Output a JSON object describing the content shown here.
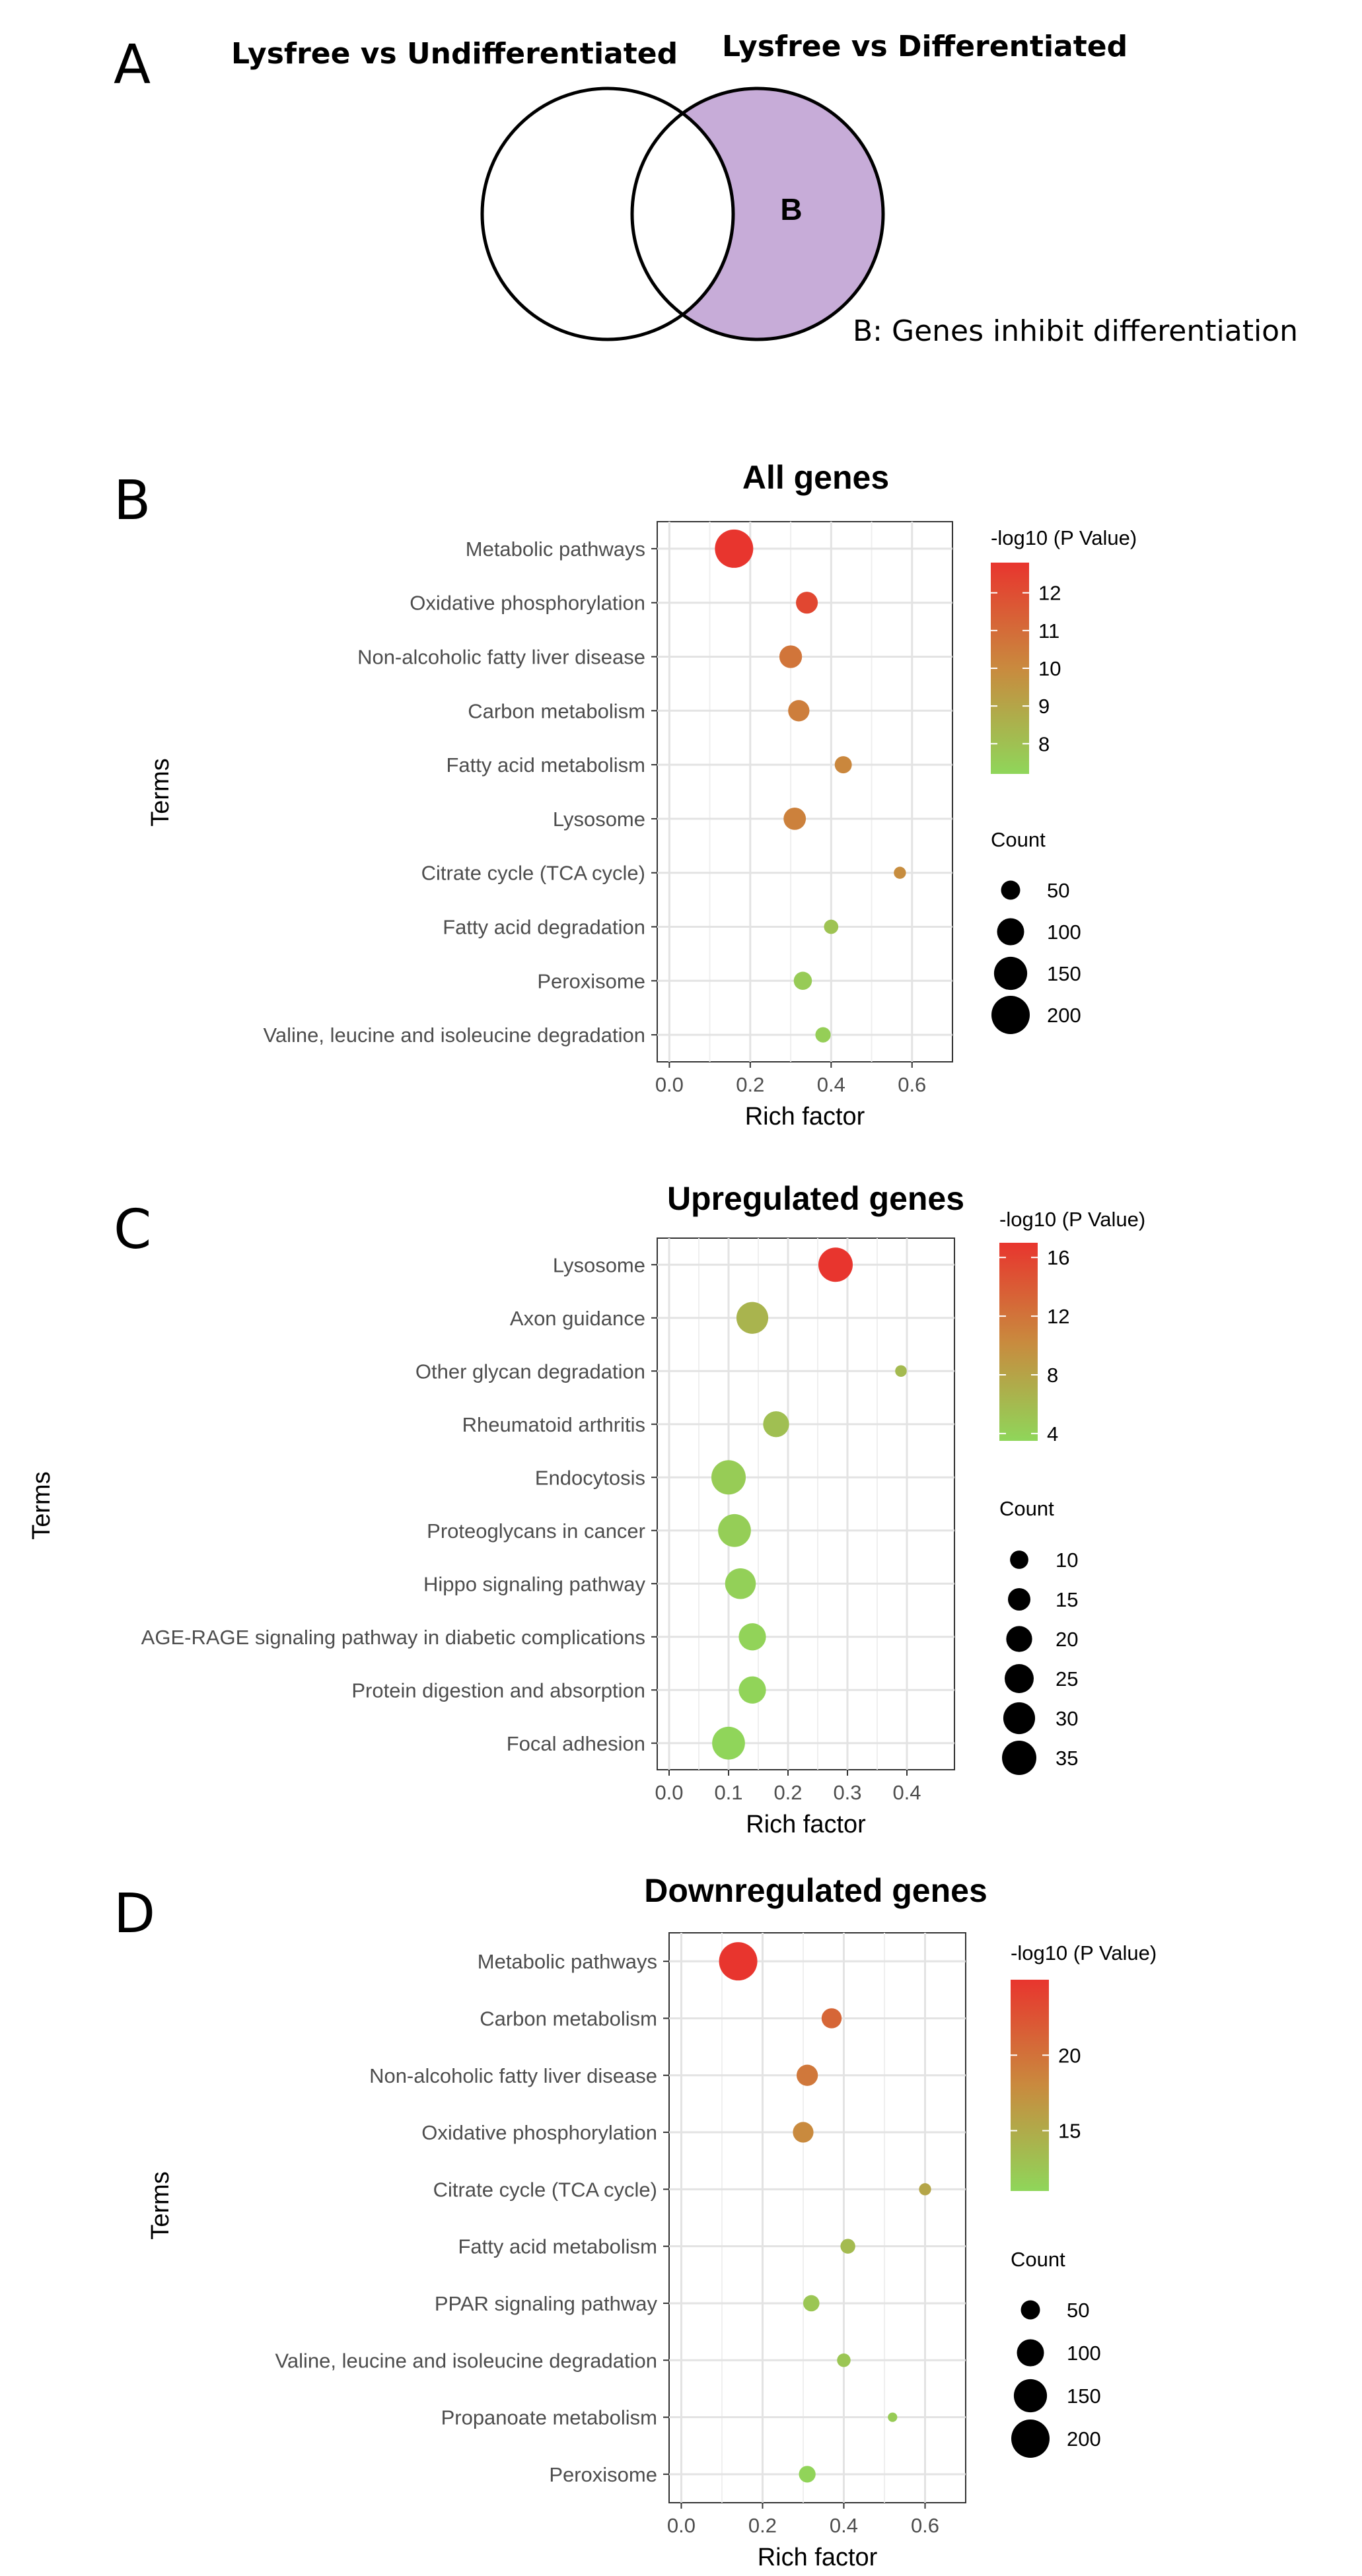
{
  "panel_labels": {
    "a": "A",
    "b": "B",
    "c": "C",
    "d": "D"
  },
  "venn": {
    "left_title": "Lysfree vs Undifferentiated",
    "right_title": "Lysfree vs Differentiated",
    "region_label": "B",
    "note": "B: Genes inhibit differentiation",
    "fill_color": "#c7acd8"
  },
  "colors": {
    "high": "#e8352e",
    "mid": "#c98a3e",
    "low": "#8fd65a"
  },
  "chart_data": [
    {
      "type": "scatter",
      "subtype": "bubble",
      "title": "All genes",
      "xlabel": "Rich factor",
      "ylabel": "Terms",
      "xlim": [
        -0.03,
        0.7
      ],
      "xticks": [
        0.0,
        0.2,
        0.4,
        0.6
      ],
      "xtick_labels": [
        "0.0",
        "0.2",
        "0.4",
        "0.6"
      ],
      "color_legend_title": "-log10 (P Value)",
      "color_range": [
        7.2,
        12.8
      ],
      "color_ticks": [
        12,
        11,
        10,
        9,
        8
      ],
      "color_tick_labels": [
        "12",
        "11",
        "10",
        "9",
        "8"
      ],
      "size_legend_title": "Count",
      "size_legend": [
        50,
        100,
        150,
        200
      ],
      "size_legend_labels": [
        "50",
        "100",
        "150",
        "200"
      ],
      "count_max": 200,
      "points": [
        {
          "term": "Metabolic pathways",
          "rich": 0.16,
          "p": 12.8,
          "count": 200
        },
        {
          "term": "Oxidative phosphorylation",
          "rich": 0.34,
          "p": 12.2,
          "count": 65
        },
        {
          "term": "Non-alcoholic fatty liver disease",
          "rich": 0.3,
          "p": 10.7,
          "count": 70
        },
        {
          "term": "Carbon metabolism",
          "rich": 0.32,
          "p": 10.4,
          "count": 62
        },
        {
          "term": "Fatty acid metabolism",
          "rich": 0.43,
          "p": 10.1,
          "count": 40
        },
        {
          "term": "Lysosome",
          "rich": 0.31,
          "p": 10.3,
          "count": 68
        },
        {
          "term": "Citrate cycle (TCA cycle)",
          "rich": 0.57,
          "p": 9.9,
          "count": 20
        },
        {
          "term": "Fatty acid degradation",
          "rich": 0.4,
          "p": 7.9,
          "count": 28
        },
        {
          "term": "Peroxisome",
          "rich": 0.33,
          "p": 7.6,
          "count": 45
        },
        {
          "term": "Valine, leucine and isoleucine degradation",
          "rich": 0.38,
          "p": 7.5,
          "count": 32
        }
      ]
    },
    {
      "type": "scatter",
      "subtype": "bubble",
      "title": "Upregulated genes",
      "xlabel": "Rich factor",
      "ylabel": "Terms",
      "xlim": [
        -0.02,
        0.48
      ],
      "xticks": [
        0.0,
        0.1,
        0.2,
        0.3,
        0.4
      ],
      "xtick_labels": [
        "0.0",
        "0.1",
        "0.2",
        "0.3",
        "0.4"
      ],
      "color_legend_title": "-log10 (P Value)",
      "color_range": [
        3.5,
        17
      ],
      "color_ticks": [
        16,
        12,
        8,
        4
      ],
      "color_tick_labels": [
        "16",
        "12",
        "8",
        "4"
      ],
      "size_legend_title": "Count",
      "size_legend": [
        10,
        15,
        20,
        25,
        30,
        35
      ],
      "size_legend_labels": [
        "10",
        "15",
        "20",
        "25",
        "30",
        "35"
      ],
      "count_max": 35,
      "points": [
        {
          "term": "Lysosome",
          "rich": 0.28,
          "p": 17.0,
          "count": 35
        },
        {
          "term": "Axon guidance",
          "rich": 0.14,
          "p": 6.5,
          "count": 30
        },
        {
          "term": "Other glycan degradation",
          "rich": 0.39,
          "p": 6.0,
          "count": 4
        },
        {
          "term": "Rheumatoid arthritis",
          "rich": 0.18,
          "p": 5.5,
          "count": 20
        },
        {
          "term": "Endocytosis",
          "rich": 0.1,
          "p": 4.4,
          "count": 35
        },
        {
          "term": "Proteoglycans in cancer",
          "rich": 0.11,
          "p": 4.2,
          "count": 32
        },
        {
          "term": "Hippo signaling pathway",
          "rich": 0.12,
          "p": 4.0,
          "count": 28
        },
        {
          "term": "AGE-RAGE signaling pathway in diabetic complications",
          "rich": 0.14,
          "p": 3.8,
          "count": 22
        },
        {
          "term": "Protein digestion and absorption",
          "rich": 0.14,
          "p": 3.7,
          "count": 22
        },
        {
          "term": "Focal adhesion",
          "rich": 0.1,
          "p": 3.6,
          "count": 32
        }
      ]
    },
    {
      "type": "scatter",
      "subtype": "bubble",
      "title": "Downregulated genes",
      "xlabel": "Rich factor",
      "ylabel": "Terms",
      "xlim": [
        -0.03,
        0.7
      ],
      "xticks": [
        0.0,
        0.2,
        0.4,
        0.6
      ],
      "xtick_labels": [
        "0.0",
        "0.2",
        "0.4",
        "0.6"
      ],
      "color_legend_title": "-log10 (P Value)",
      "color_range": [
        11,
        25
      ],
      "color_ticks": [
        20,
        15
      ],
      "color_tick_labels": [
        "20",
        "15"
      ],
      "size_legend_title": "Count",
      "size_legend": [
        50,
        100,
        150,
        200
      ],
      "size_legend_labels": [
        "50",
        "100",
        "150",
        "200"
      ],
      "count_max": 200,
      "points": [
        {
          "term": "Metabolic pathways",
          "rich": 0.14,
          "p": 25.0,
          "count": 200
        },
        {
          "term": "Carbon metabolism",
          "rich": 0.37,
          "p": 21.0,
          "count": 55
        },
        {
          "term": "Non-alcoholic fatty liver disease",
          "rich": 0.31,
          "p": 19.5,
          "count": 62
        },
        {
          "term": "Oxidative phosphorylation",
          "rich": 0.3,
          "p": 18.0,
          "count": 58
        },
        {
          "term": "Citrate cycle (TCA cycle)",
          "rich": 0.6,
          "p": 15.5,
          "count": 20
        },
        {
          "term": "Fatty acid metabolism",
          "rich": 0.41,
          "p": 13.5,
          "count": 30
        },
        {
          "term": "PPAR signaling pathway",
          "rich": 0.32,
          "p": 12.5,
          "count": 36
        },
        {
          "term": "Valine, leucine and isoleucine degradation",
          "rich": 0.4,
          "p": 12.5,
          "count": 25
        },
        {
          "term": "Propanoate metabolism",
          "rich": 0.52,
          "p": 12.0,
          "count": 12
        },
        {
          "term": "Peroxisome",
          "rich": 0.31,
          "p": 11.2,
          "count": 38
        }
      ]
    }
  ]
}
